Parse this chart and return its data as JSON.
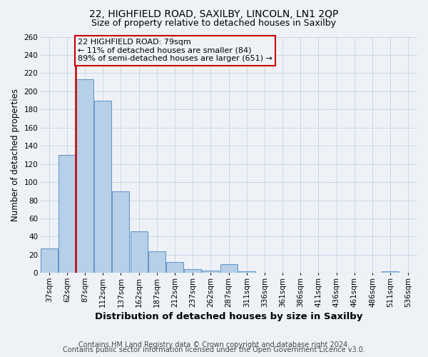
{
  "title": "22, HIGHFIELD ROAD, SAXILBY, LINCOLN, LN1 2QP",
  "subtitle": "Size of property relative to detached houses in Saxilby",
  "xlabel": "Distribution of detached houses by size in Saxilby",
  "ylabel": "Number of detached properties",
  "categories": [
    "37sqm",
    "62sqm",
    "87sqm",
    "112sqm",
    "137sqm",
    "162sqm",
    "187sqm",
    "212sqm",
    "237sqm",
    "262sqm",
    "287sqm",
    "311sqm",
    "336sqm",
    "361sqm",
    "386sqm",
    "411sqm",
    "436sqm",
    "461sqm",
    "486sqm",
    "511sqm",
    "536sqm"
  ],
  "values": [
    27,
    130,
    213,
    190,
    90,
    46,
    24,
    12,
    4,
    3,
    10,
    2,
    0,
    0,
    0,
    0,
    0,
    0,
    0,
    2,
    0
  ],
  "bar_color": "#b8cfe8",
  "bar_edge_color": "#6699cc",
  "annotation_box_text": "22 HIGHFIELD ROAD: 79sqm\n← 11% of detached houses are smaller (84)\n89% of semi-detached houses are larger (651) →",
  "annotation_box_edge_color": "#cc0000",
  "red_line_x": 1.5,
  "ylim": [
    0,
    260
  ],
  "yticks": [
    0,
    20,
    40,
    60,
    80,
    100,
    120,
    140,
    160,
    180,
    200,
    220,
    240,
    260
  ],
  "grid_color": "#c8d8e8",
  "background_color": "#eef2f7",
  "footer_line1": "Contains HM Land Registry data © Crown copyright and database right 2024.",
  "footer_line2": "Contains public sector information licensed under the Open Government Licence v3.0.",
  "title_fontsize": 10,
  "subtitle_fontsize": 9,
  "xlabel_fontsize": 9.5,
  "ylabel_fontsize": 8.5,
  "tick_fontsize": 7.5,
  "annotation_fontsize": 8,
  "footer_fontsize": 7
}
